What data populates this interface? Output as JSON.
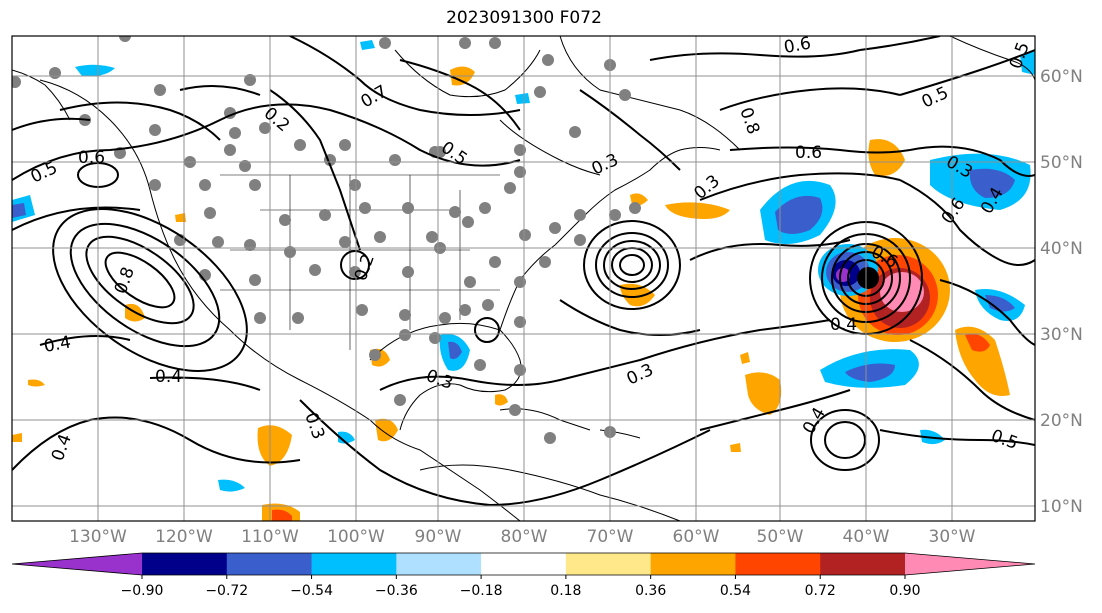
{
  "title": "2023091300 F072",
  "lon_labels": [
    "130°W",
    "120°W",
    "110°W",
    "100°W",
    "90°W",
    "80°W",
    "70°W",
    "60°W",
    "50°W",
    "40°W",
    "30°W"
  ],
  "lat_labels": [
    "60°N",
    "50°N",
    "40°N",
    "30°N",
    "20°N",
    "10°N"
  ],
  "contour_labels": [
    "0.6",
    "0.5",
    "0.6",
    "0.5",
    "0.6",
    "0.6",
    "0.7",
    "0.5",
    "0.5",
    "0.6",
    "0.4",
    "0.3",
    "0.4",
    "0.4",
    "0.3",
    "0.3",
    "0.2",
    "0.3",
    "0.3",
    "0.3",
    "0.4",
    "0.4",
    "0.5",
    "0.4",
    "0.8",
    "0.8",
    "0.2"
  ],
  "colorbar": {
    "ticks": [
      "−0.90",
      "−0.72",
      "−0.54",
      "−0.36",
      "−0.18",
      "0.18",
      "0.36",
      "0.54",
      "0.72",
      "0.90"
    ],
    "colors": [
      "#9932cc",
      "#00008b",
      "#3a5fcd",
      "#00bfff",
      "#b0e0ff",
      "#ffffff",
      "#ffe88a",
      "#ffa500",
      "#ff4500",
      "#b22222",
      "#ff8ab4"
    ]
  },
  "colors": {
    "positive_fill": "#ffa500",
    "negative_fill": "#00bfff",
    "station_marker": "#808080",
    "contour": "#000000"
  }
}
